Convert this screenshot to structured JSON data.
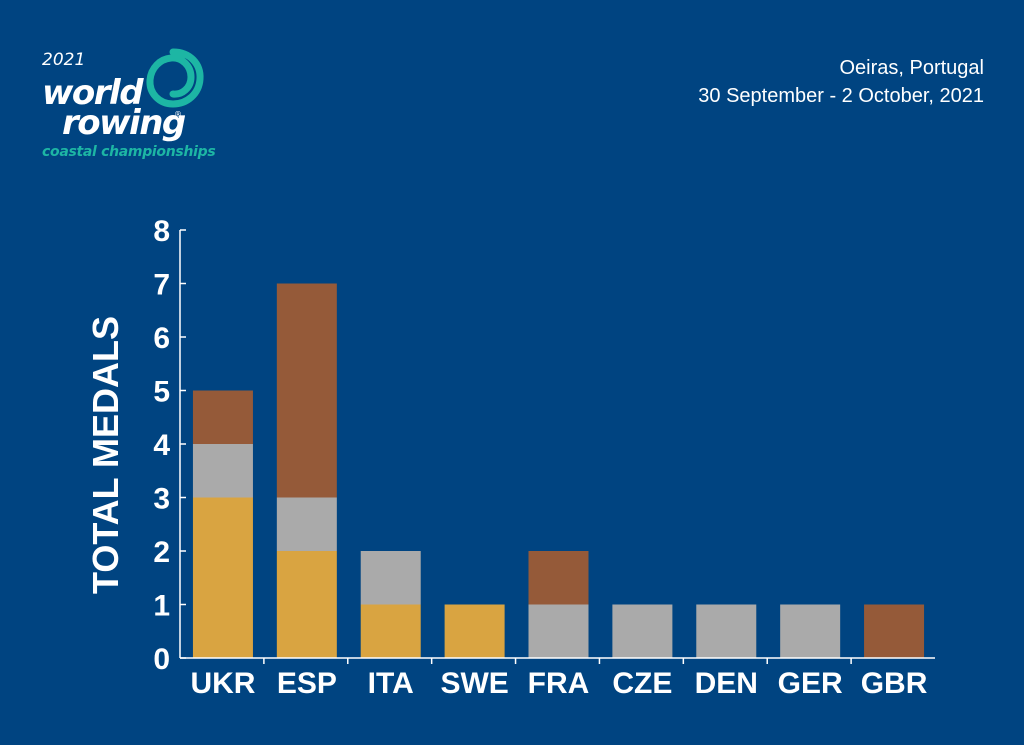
{
  "logo": {
    "year": "2021",
    "line1": "world",
    "line2": "rowing",
    "registered": "®",
    "subtitle": "coastal championships",
    "icon": "rowing-swirl-icon",
    "accent_color": "#1db6a4"
  },
  "event": {
    "location": "Oeiras, Portugal",
    "dates": "30 September - 2 October, 2021"
  },
  "colors": {
    "background": "#004481",
    "gold": "#d9a441",
    "silver": "#aaaaaa",
    "bronze": "#955a39",
    "axis": "#ffffff"
  },
  "chart_data": {
    "type": "bar",
    "stacked": true,
    "ylabel": "TOTAL MEDALS",
    "ylim": [
      0,
      8
    ],
    "yticks": [
      0,
      1,
      2,
      3,
      4,
      5,
      6,
      7,
      8
    ],
    "categories": [
      "UKR",
      "ESP",
      "ITA",
      "SWE",
      "FRA",
      "CZE",
      "DEN",
      "GER",
      "GBR"
    ],
    "series": [
      {
        "values": [
          3,
          2,
          1,
          1,
          0,
          0,
          0,
          0,
          0
        ],
        "color": "#d9a441"
      },
      {
        "values": [
          1,
          1,
          1,
          0,
          1,
          1,
          1,
          1,
          0
        ],
        "color": "#aaaaaa"
      },
      {
        "values": [
          1,
          4,
          0,
          0,
          1,
          0,
          0,
          0,
          1
        ],
        "color": "#955a39"
      }
    ]
  }
}
